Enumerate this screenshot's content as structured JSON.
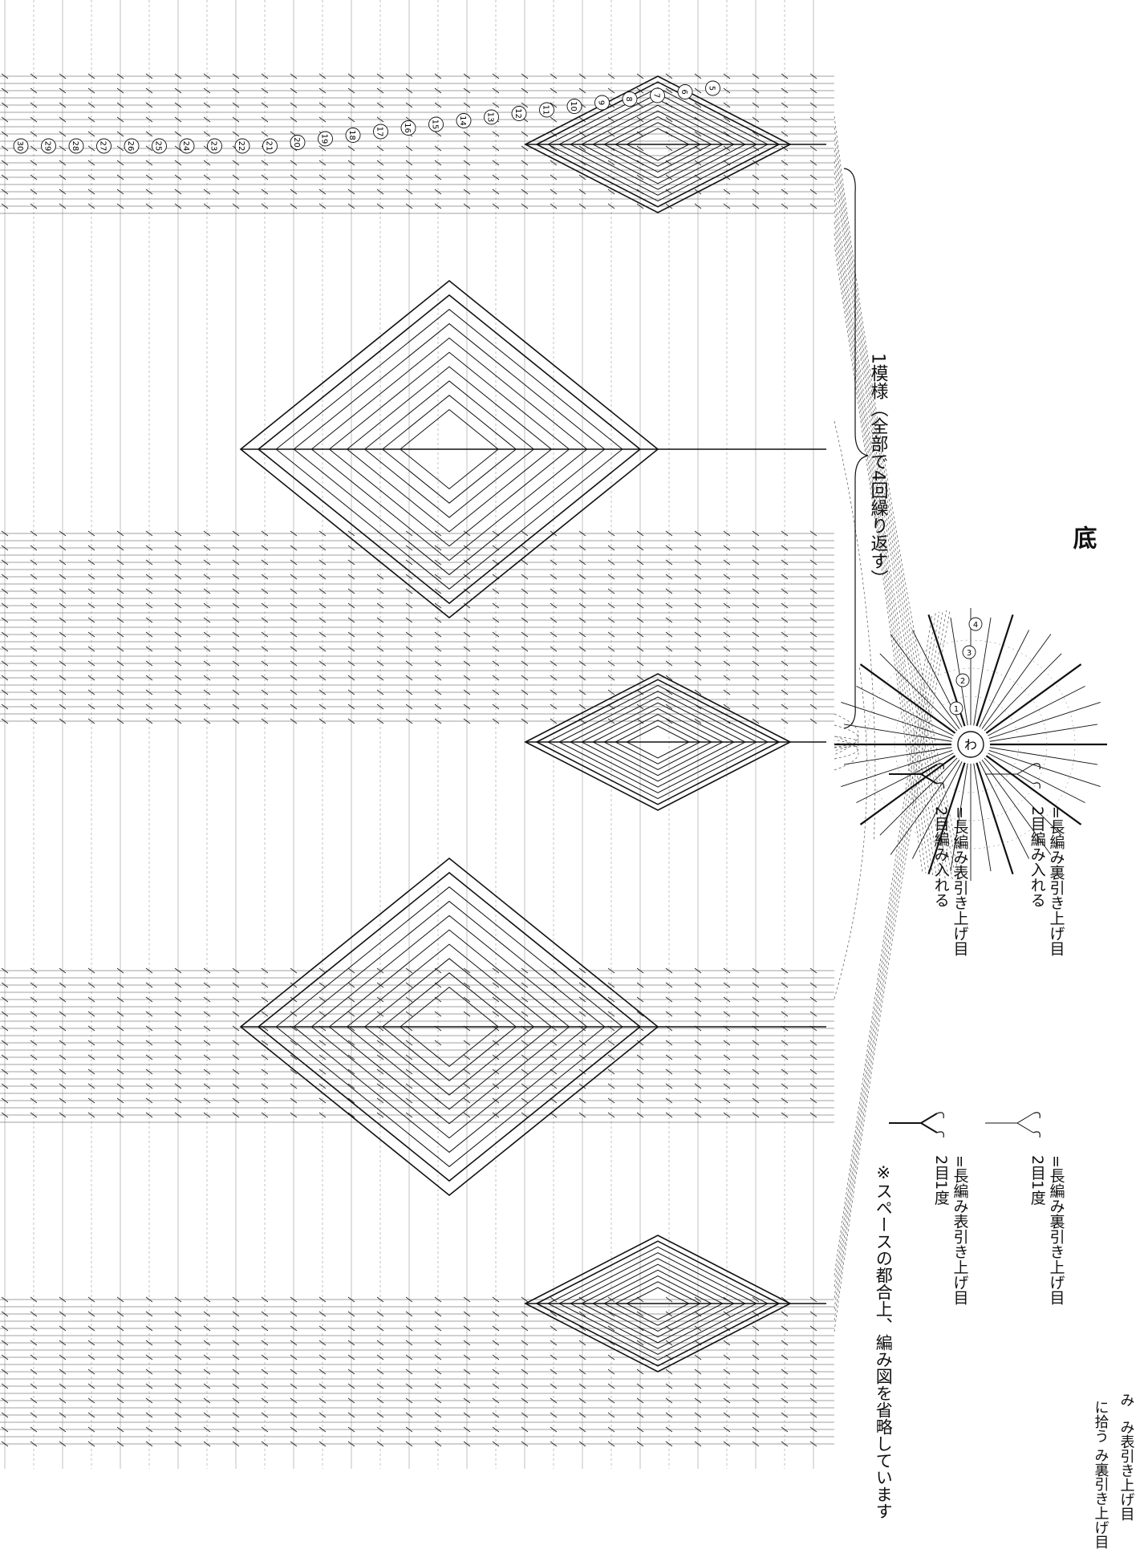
{
  "diagram": {
    "bottom_title": "底",
    "center_ring_label": "わ",
    "repeat_label": "1模様（全部で4回繰り返す）",
    "space_note": "※スペースの都合上、編み図を省略しています",
    "legend": [
      {
        "symbol_name": "fpdc-2tog-icon",
        "line1": "=長編み表引き上げ目",
        "line2": "2目1度"
      },
      {
        "symbol_name": "bpdc-2tog-icon",
        "line1": "=長編み裏引き上げ目",
        "line2": "2目1度"
      },
      {
        "symbol_name": "fpdc-inc-icon",
        "line1": "=長編み表引き上げ目",
        "line2": "2目編み入れる"
      },
      {
        "symbol_name": "bpdc-inc-icon",
        "line1": "=長編み裏引き上げ目",
        "line2": "2目編み入れる"
      }
    ],
    "partial_texts": [
      "み表引き上げ目",
      "み裏引き上げ目",
      "に拾う",
      "み"
    ],
    "side_rows": [
      "30",
      "29",
      "28",
      "27",
      "26",
      "25",
      "24",
      "23",
      "22",
      "21",
      "20",
      "19",
      "18",
      "17",
      "16",
      "15",
      "14",
      "13",
      "12",
      "11",
      "10",
      "9",
      "8",
      "7",
      "6",
      "5"
    ],
    "bottom_rows": [
      "1",
      "2",
      "3",
      "4"
    ]
  }
}
